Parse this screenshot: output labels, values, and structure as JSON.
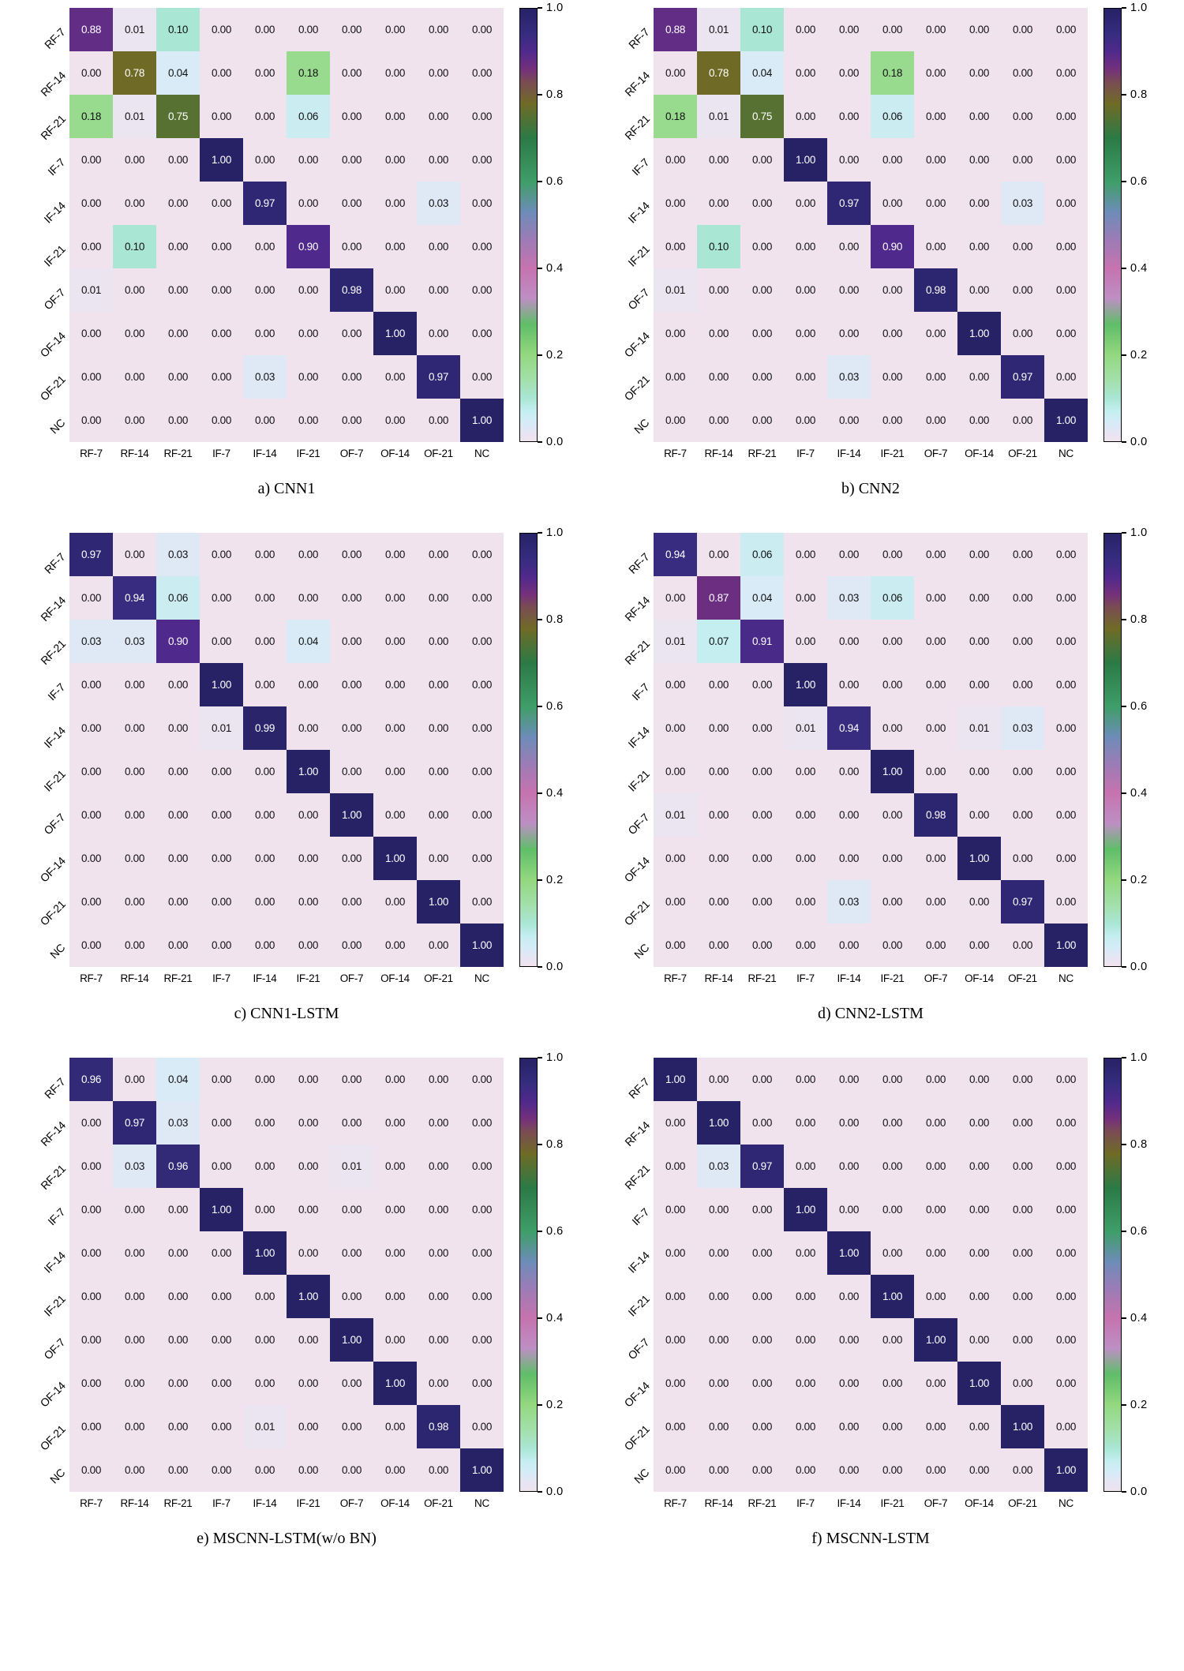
{
  "colormap_stops": [
    [
      0.0,
      "#f0e3ee"
    ],
    [
      0.02,
      "#e6e5f4"
    ],
    [
      0.04,
      "#d8ebf6"
    ],
    [
      0.07,
      "#c4eef0"
    ],
    [
      0.1,
      "#a9e6d4"
    ],
    [
      0.14,
      "#a3e0ac"
    ],
    [
      0.2,
      "#93d87f"
    ],
    [
      0.27,
      "#5fbe68"
    ],
    [
      0.33,
      "#bd8fc4"
    ],
    [
      0.4,
      "#c673ae"
    ],
    [
      0.47,
      "#9a7cb6"
    ],
    [
      0.53,
      "#6d8cb8"
    ],
    [
      0.6,
      "#3f9e68"
    ],
    [
      0.7,
      "#2b7a46"
    ],
    [
      0.78,
      "#6f6b26"
    ],
    [
      0.83,
      "#7a4c53"
    ],
    [
      0.86,
      "#74307c"
    ],
    [
      0.9,
      "#50298c"
    ],
    [
      0.94,
      "#372c80"
    ],
    [
      1.0,
      "#272266"
    ]
  ],
  "chart_data": [
    {
      "type": "heatmap",
      "title": "a) CNN1",
      "x_categories": [
        "RF-7",
        "RF-14",
        "RF-21",
        "IF-7",
        "IF-14",
        "IF-21",
        "OF-7",
        "OF-14",
        "OF-21",
        "NC"
      ],
      "y_categories": [
        "RF-7",
        "RF-14",
        "RF-21",
        "IF-7",
        "IF-14",
        "IF-21",
        "OF-7",
        "OF-14",
        "OF-21",
        "NC"
      ],
      "values": [
        [
          "0.88",
          "0.01",
          "0.10",
          "0.00",
          "0.00",
          "0.00",
          "0.00",
          "0.00",
          "0.00",
          "0.00"
        ],
        [
          "0.00",
          "0.78",
          "0.04",
          "0.00",
          "0.00",
          "0.18",
          "0.00",
          "0.00",
          "0.00",
          "0.00"
        ],
        [
          "0.18",
          "0.01",
          "0.75",
          "0.00",
          "0.00",
          "0.06",
          "0.00",
          "0.00",
          "0.00",
          "0.00"
        ],
        [
          "0.00",
          "0.00",
          "0.00",
          "1.00",
          "0.00",
          "0.00",
          "0.00",
          "0.00",
          "0.00",
          "0.00"
        ],
        [
          "0.00",
          "0.00",
          "0.00",
          "0.00",
          "0.97",
          "0.00",
          "0.00",
          "0.00",
          "0.03",
          "0.00"
        ],
        [
          "0.00",
          "0.10",
          "0.00",
          "0.00",
          "0.00",
          "0.90",
          "0.00",
          "0.00",
          "0.00",
          "0.00"
        ],
        [
          "0.01",
          "0.00",
          "0.00",
          "0.00",
          "0.00",
          "0.00",
          "0.98",
          "0.00",
          "0.00",
          "0.00"
        ],
        [
          "0.00",
          "0.00",
          "0.00",
          "0.00",
          "0.00",
          "0.00",
          "0.00",
          "1.00",
          "0.00",
          "0.00"
        ],
        [
          "0.00",
          "0.00",
          "0.00",
          "0.00",
          "0.03",
          "0.00",
          "0.00",
          "0.00",
          "0.97",
          "0.00"
        ],
        [
          "0.00",
          "0.00",
          "0.00",
          "0.00",
          "0.00",
          "0.00",
          "0.00",
          "0.00",
          "0.00",
          "1.00"
        ]
      ],
      "colorbar_ticks": [
        "1.0",
        "0.8",
        "0.6",
        "0.4",
        "0.2",
        "0.0"
      ],
      "value_range": [
        0,
        1
      ]
    },
    {
      "type": "heatmap",
      "title": "b) CNN2",
      "x_categories": [
        "RF-7",
        "RF-14",
        "RF-21",
        "IF-7",
        "IF-14",
        "IF-21",
        "OF-7",
        "OF-14",
        "OF-21",
        "NC"
      ],
      "y_categories": [
        "RF-7",
        "RF-14",
        "RF-21",
        "IF-7",
        "IF-14",
        "IF-21",
        "OF-7",
        "OF-14",
        "OF-21",
        "NC"
      ],
      "values": [
        [
          "0.88",
          "0.01",
          "0.10",
          "0.00",
          "0.00",
          "0.00",
          "0.00",
          "0.00",
          "0.00",
          "0.00"
        ],
        [
          "0.00",
          "0.78",
          "0.04",
          "0.00",
          "0.00",
          "0.18",
          "0.00",
          "0.00",
          "0.00",
          "0.00"
        ],
        [
          "0.18",
          "0.01",
          "0.75",
          "0.00",
          "0.00",
          "0.06",
          "0.00",
          "0.00",
          "0.00",
          "0.00"
        ],
        [
          "0.00",
          "0.00",
          "0.00",
          "1.00",
          "0.00",
          "0.00",
          "0.00",
          "0.00",
          "0.00",
          "0.00"
        ],
        [
          "0.00",
          "0.00",
          "0.00",
          "0.00",
          "0.97",
          "0.00",
          "0.00",
          "0.00",
          "0.03",
          "0.00"
        ],
        [
          "0.00",
          "0.10",
          "0.00",
          "0.00",
          "0.00",
          "0.90",
          "0.00",
          "0.00",
          "0.00",
          "0.00"
        ],
        [
          "0.01",
          "0.00",
          "0.00",
          "0.00",
          "0.00",
          "0.00",
          "0.98",
          "0.00",
          "0.00",
          "0.00"
        ],
        [
          "0.00",
          "0.00",
          "0.00",
          "0.00",
          "0.00",
          "0.00",
          "0.00",
          "1.00",
          "0.00",
          "0.00"
        ],
        [
          "0.00",
          "0.00",
          "0.00",
          "0.00",
          "0.03",
          "0.00",
          "0.00",
          "0.00",
          "0.97",
          "0.00"
        ],
        [
          "0.00",
          "0.00",
          "0.00",
          "0.00",
          "0.00",
          "0.00",
          "0.00",
          "0.00",
          "0.00",
          "1.00"
        ]
      ],
      "colorbar_ticks": [
        "1.0",
        "0.8",
        "0.6",
        "0.4",
        "0.2",
        "0.0"
      ],
      "value_range": [
        0,
        1
      ]
    },
    {
      "type": "heatmap",
      "title": "c) CNN1-LSTM",
      "x_categories": [
        "RF-7",
        "RF-14",
        "RF-21",
        "IF-7",
        "IF-14",
        "IF-21",
        "OF-7",
        "OF-14",
        "OF-21",
        "NC"
      ],
      "y_categories": [
        "RF-7",
        "RF-14",
        "RF-21",
        "IF-7",
        "IF-14",
        "IF-21",
        "OF-7",
        "OF-14",
        "OF-21",
        "NC"
      ],
      "values": [
        [
          "0.97",
          "0.00",
          "0.03",
          "0.00",
          "0.00",
          "0.00",
          "0.00",
          "0.00",
          "0.00",
          "0.00"
        ],
        [
          "0.00",
          "0.94",
          "0.06",
          "0.00",
          "0.00",
          "0.00",
          "0.00",
          "0.00",
          "0.00",
          "0.00"
        ],
        [
          "0.03",
          "0.03",
          "0.90",
          "0.00",
          "0.00",
          "0.04",
          "0.00",
          "0.00",
          "0.00",
          "0.00"
        ],
        [
          "0.00",
          "0.00",
          "0.00",
          "1.00",
          "0.00",
          "0.00",
          "0.00",
          "0.00",
          "0.00",
          "0.00"
        ],
        [
          "0.00",
          "0.00",
          "0.00",
          "0.01",
          "0.99",
          "0.00",
          "0.00",
          "0.00",
          "0.00",
          "0.00"
        ],
        [
          "0.00",
          "0.00",
          "0.00",
          "0.00",
          "0.00",
          "1.00",
          "0.00",
          "0.00",
          "0.00",
          "0.00"
        ],
        [
          "0.00",
          "0.00",
          "0.00",
          "0.00",
          "0.00",
          "0.00",
          "1.00",
          "0.00",
          "0.00",
          "0.00"
        ],
        [
          "0.00",
          "0.00",
          "0.00",
          "0.00",
          "0.00",
          "0.00",
          "0.00",
          "1.00",
          "0.00",
          "0.00"
        ],
        [
          "0.00",
          "0.00",
          "0.00",
          "0.00",
          "0.00",
          "0.00",
          "0.00",
          "0.00",
          "1.00",
          "0.00"
        ],
        [
          "0.00",
          "0.00",
          "0.00",
          "0.00",
          "0.00",
          "0.00",
          "0.00",
          "0.00",
          "0.00",
          "1.00"
        ]
      ],
      "colorbar_ticks": [
        "1.0",
        "0.8",
        "0.6",
        "0.4",
        "0.2",
        "0.0"
      ],
      "value_range": [
        0,
        1
      ]
    },
    {
      "type": "heatmap",
      "title": "d) CNN2-LSTM",
      "x_categories": [
        "RF-7",
        "RF-14",
        "RF-21",
        "IF-7",
        "IF-14",
        "IF-21",
        "OF-7",
        "OF-14",
        "OF-21",
        "NC"
      ],
      "y_categories": [
        "RF-7",
        "RF-14",
        "RF-21",
        "IF-7",
        "IF-14",
        "IF-21",
        "OF-7",
        "OF-14",
        "OF-21",
        "NC"
      ],
      "values": [
        [
          "0.94",
          "0.00",
          "0.06",
          "0.00",
          "0.00",
          "0.00",
          "0.00",
          "0.00",
          "0.00",
          "0.00"
        ],
        [
          "0.00",
          "0.87",
          "0.04",
          "0.00",
          "0.03",
          "0.06",
          "0.00",
          "0.00",
          "0.00",
          "0.00"
        ],
        [
          "0.01",
          "0.07",
          "0.91",
          "0.00",
          "0.00",
          "0.00",
          "0.00",
          "0.00",
          "0.00",
          "0.00"
        ],
        [
          "0.00",
          "0.00",
          "0.00",
          "1.00",
          "0.00",
          "0.00",
          "0.00",
          "0.00",
          "0.00",
          "0.00"
        ],
        [
          "0.00",
          "0.00",
          "0.00",
          "0.01",
          "0.94",
          "0.00",
          "0.00",
          "0.01",
          "0.03",
          "0.00"
        ],
        [
          "0.00",
          "0.00",
          "0.00",
          "0.00",
          "0.00",
          "1.00",
          "0.00",
          "0.00",
          "0.00",
          "0.00"
        ],
        [
          "0.01",
          "0.00",
          "0.00",
          "0.00",
          "0.00",
          "0.00",
          "0.98",
          "0.00",
          "0.00",
          "0.00"
        ],
        [
          "0.00",
          "0.00",
          "0.00",
          "0.00",
          "0.00",
          "0.00",
          "0.00",
          "1.00",
          "0.00",
          "0.00"
        ],
        [
          "0.00",
          "0.00",
          "0.00",
          "0.00",
          "0.03",
          "0.00",
          "0.00",
          "0.00",
          "0.97",
          "0.00"
        ],
        [
          "0.00",
          "0.00",
          "0.00",
          "0.00",
          "0.00",
          "0.00",
          "0.00",
          "0.00",
          "0.00",
          "1.00"
        ]
      ],
      "colorbar_ticks": [
        "1.0",
        "0.8",
        "0.6",
        "0.4",
        "0.2",
        "0.0"
      ],
      "value_range": [
        0,
        1
      ]
    },
    {
      "type": "heatmap",
      "title": "e) MSCNN-LSTM(w/o BN)",
      "x_categories": [
        "RF-7",
        "RF-14",
        "RF-21",
        "IF-7",
        "IF-14",
        "IF-21",
        "OF-7",
        "OF-14",
        "OF-21",
        "NC"
      ],
      "y_categories": [
        "RF-7",
        "RF-14",
        "RF-21",
        "IF-7",
        "IF-14",
        "IF-21",
        "OF-7",
        "OF-14",
        "OF-21",
        "NC"
      ],
      "values": [
        [
          "0.96",
          "0.00",
          "0.04",
          "0.00",
          "0.00",
          "0.00",
          "0.00",
          "0.00",
          "0.00",
          "0.00"
        ],
        [
          "0.00",
          "0.97",
          "0.03",
          "0.00",
          "0.00",
          "0.00",
          "0.00",
          "0.00",
          "0.00",
          "0.00"
        ],
        [
          "0.00",
          "0.03",
          "0.96",
          "0.00",
          "0.00",
          "0.00",
          "0.01",
          "0.00",
          "0.00",
          "0.00"
        ],
        [
          "0.00",
          "0.00",
          "0.00",
          "1.00",
          "0.00",
          "0.00",
          "0.00",
          "0.00",
          "0.00",
          "0.00"
        ],
        [
          "0.00",
          "0.00",
          "0.00",
          "0.00",
          "1.00",
          "0.00",
          "0.00",
          "0.00",
          "0.00",
          "0.00"
        ],
        [
          "0.00",
          "0.00",
          "0.00",
          "0.00",
          "0.00",
          "1.00",
          "0.00",
          "0.00",
          "0.00",
          "0.00"
        ],
        [
          "0.00",
          "0.00",
          "0.00",
          "0.00",
          "0.00",
          "0.00",
          "1.00",
          "0.00",
          "0.00",
          "0.00"
        ],
        [
          "0.00",
          "0.00",
          "0.00",
          "0.00",
          "0.00",
          "0.00",
          "0.00",
          "1.00",
          "0.00",
          "0.00"
        ],
        [
          "0.00",
          "0.00",
          "0.00",
          "0.00",
          "0.01",
          "0.00",
          "0.00",
          "0.00",
          "0.98",
          "0.00"
        ],
        [
          "0.00",
          "0.00",
          "0.00",
          "0.00",
          "0.00",
          "0.00",
          "0.00",
          "0.00",
          "0.00",
          "1.00"
        ]
      ],
      "colorbar_ticks": [
        "1.0",
        "0.8",
        "0.6",
        "0.4",
        "0.2",
        "0.0"
      ],
      "value_range": [
        0,
        1
      ]
    },
    {
      "type": "heatmap",
      "title": "f) MSCNN-LSTM",
      "x_categories": [
        "RF-7",
        "RF-14",
        "RF-21",
        "IF-7",
        "IF-14",
        "IF-21",
        "OF-7",
        "OF-14",
        "OF-21",
        "NC"
      ],
      "y_categories": [
        "RF-7",
        "RF-14",
        "RF-21",
        "IF-7",
        "IF-14",
        "IF-21",
        "OF-7",
        "OF-14",
        "OF-21",
        "NC"
      ],
      "values": [
        [
          "1.00",
          "0.00",
          "0.00",
          "0.00",
          "0.00",
          "0.00",
          "0.00",
          "0.00",
          "0.00",
          "0.00"
        ],
        [
          "0.00",
          "1.00",
          "0.00",
          "0.00",
          "0.00",
          "0.00",
          "0.00",
          "0.00",
          "0.00",
          "0.00"
        ],
        [
          "0.00",
          "0.03",
          "0.97",
          "0.00",
          "0.00",
          "0.00",
          "0.00",
          "0.00",
          "0.00",
          "0.00"
        ],
        [
          "0.00",
          "0.00",
          "0.00",
          "1.00",
          "0.00",
          "0.00",
          "0.00",
          "0.00",
          "0.00",
          "0.00"
        ],
        [
          "0.00",
          "0.00",
          "0.00",
          "0.00",
          "1.00",
          "0.00",
          "0.00",
          "0.00",
          "0.00",
          "0.00"
        ],
        [
          "0.00",
          "0.00",
          "0.00",
          "0.00",
          "0.00",
          "1.00",
          "0.00",
          "0.00",
          "0.00",
          "0.00"
        ],
        [
          "0.00",
          "0.00",
          "0.00",
          "0.00",
          "0.00",
          "0.00",
          "1.00",
          "0.00",
          "0.00",
          "0.00"
        ],
        [
          "0.00",
          "0.00",
          "0.00",
          "0.00",
          "0.00",
          "0.00",
          "0.00",
          "1.00",
          "0.00",
          "0.00"
        ],
        [
          "0.00",
          "0.00",
          "0.00",
          "0.00",
          "0.00",
          "0.00",
          "0.00",
          "0.00",
          "1.00",
          "0.00"
        ],
        [
          "0.00",
          "0.00",
          "0.00",
          "0.00",
          "0.00",
          "0.00",
          "0.00",
          "0.00",
          "0.00",
          "1.00"
        ]
      ],
      "colorbar_ticks": [
        "1.0",
        "0.8",
        "0.6",
        "0.4",
        "0.2",
        "0.0"
      ],
      "value_range": [
        0,
        1
      ]
    }
  ]
}
